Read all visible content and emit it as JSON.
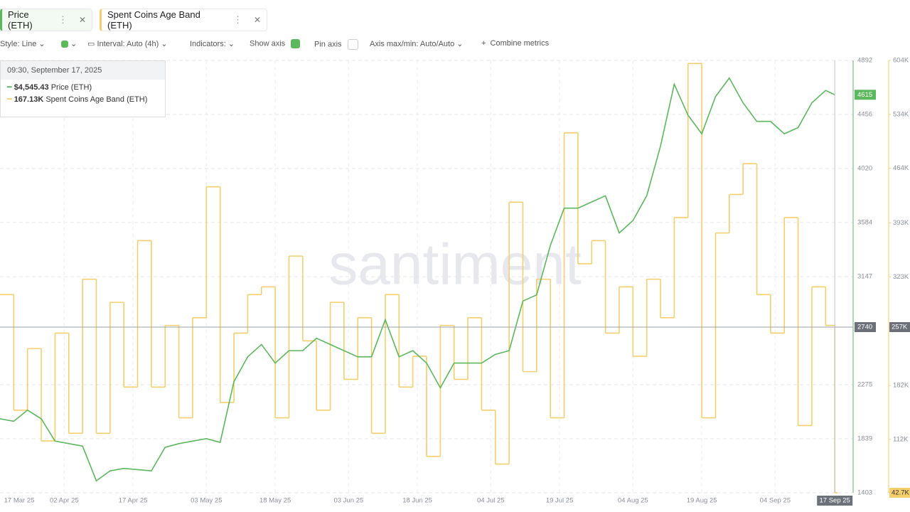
{
  "tabs": [
    "Price (ETH)",
    "Spent Coins Age Band (ETH)"
  ],
  "toolbar": {
    "style": "Style: Line",
    "interval": "Interval: Auto (4h)",
    "indicators": "Indicators:",
    "show_axis": "Show axis",
    "pin_axis": "Pin axis",
    "axis_minmax": "Axis max/min: Auto/Auto",
    "combine": "Combine metrics"
  },
  "tooltip": {
    "time": "09:30, September 17, 2025",
    "rows": [
      {
        "value": "$4,545.43",
        "name": "Price (ETH)"
      },
      {
        "value": "167.13K",
        "name": "Spent Coins Age Band (ETH)"
      }
    ]
  },
  "chart_data": {
    "type": "line",
    "watermark": "santiment",
    "x": [
      "2025-03-19",
      "2025-03-22",
      "2025-03-25",
      "2025-03-28",
      "2025-03-31",
      "2025-04-03",
      "2025-04-06",
      "2025-04-09",
      "2025-04-12",
      "2025-04-15",
      "2025-04-18",
      "2025-04-21",
      "2025-04-24",
      "2025-04-27",
      "2025-04-30",
      "2025-05-03",
      "2025-05-06",
      "2025-05-09",
      "2025-05-12",
      "2025-05-15",
      "2025-05-18",
      "2025-05-21",
      "2025-05-24",
      "2025-05-27",
      "2025-05-30",
      "2025-06-02",
      "2025-06-05",
      "2025-06-08",
      "2025-06-11",
      "2025-06-14",
      "2025-06-17",
      "2025-06-20",
      "2025-06-23",
      "2025-06-26",
      "2025-06-29",
      "2025-07-02",
      "2025-07-05",
      "2025-07-08",
      "2025-07-11",
      "2025-07-14",
      "2025-07-17",
      "2025-07-20",
      "2025-07-23",
      "2025-07-26",
      "2025-07-29",
      "2025-08-01",
      "2025-08-04",
      "2025-08-07",
      "2025-08-10",
      "2025-08-13",
      "2025-08-16",
      "2025-08-19",
      "2025-08-22",
      "2025-08-25",
      "2025-08-28",
      "2025-08-31",
      "2025-09-03",
      "2025-09-06",
      "2025-09-09",
      "2025-09-12",
      "2025-09-15",
      "2025-09-17"
    ],
    "xlim": [
      "2025-03-19",
      "2025-09-21"
    ],
    "xticks": [
      {
        "value": "2025-03-17",
        "label": "17 Mar 25"
      },
      {
        "value": "2025-04-02",
        "label": "02 Apr 25"
      },
      {
        "value": "2025-04-17",
        "label": "17 Apr 25"
      },
      {
        "value": "2025-05-03",
        "label": "03 May 25"
      },
      {
        "value": "2025-05-18",
        "label": "18 May 25"
      },
      {
        "value": "2025-06-03",
        "label": "03 Jun 25"
      },
      {
        "value": "2025-06-18",
        "label": "18 Jun 25"
      },
      {
        "value": "2025-07-04",
        "label": "04 Jul 25"
      },
      {
        "value": "2025-07-19",
        "label": "19 Jul 25"
      },
      {
        "value": "2025-08-04",
        "label": "04 Aug 25"
      },
      {
        "value": "2025-08-19",
        "label": "19 Aug 25"
      },
      {
        "value": "2025-09-04",
        "label": "04 Sep 25"
      }
    ],
    "ylim": [
      1403,
      4892
    ],
    "yticks": [
      1403,
      1839,
      2275,
      3147,
      3584,
      4020,
      4456,
      4892
    ],
    "y2lim": [
      42700,
      604000
    ],
    "y2ticks": [
      {
        "value": 42700,
        "label": "42.7K"
      },
      {
        "value": 112000,
        "label": "112K"
      },
      {
        "value": 182000,
        "label": "182K"
      },
      {
        "value": 323000,
        "label": "323K"
      },
      {
        "value": 393000,
        "label": "393K"
      },
      {
        "value": 464000,
        "label": "464K"
      },
      {
        "value": 534000,
        "label": "534K"
      },
      {
        "value": 604000,
        "label": "604K"
      }
    ],
    "grid": true,
    "crosshair": {
      "x": "2025-09-17",
      "x_label": "17 Sep 25",
      "y": 2740,
      "y2_label": "257K"
    },
    "series": [
      {
        "name": "Price (ETH)",
        "color": "#5cb85c",
        "values": [
          2000,
          1980,
          2070,
          2000,
          1820,
          1800,
          1780,
          1500,
          1580,
          1600,
          1590,
          1580,
          1770,
          1800,
          1820,
          1840,
          1810,
          2300,
          2500,
          2600,
          2450,
          2550,
          2550,
          2650,
          2600,
          2550,
          2500,
          2500,
          2800,
          2500,
          2550,
          2450,
          2250,
          2450,
          2450,
          2450,
          2520,
          2550,
          2950,
          3000,
          3400,
          3700,
          3700,
          3750,
          3800,
          3500,
          3600,
          3800,
          4200,
          4700,
          4450,
          4300,
          4600,
          4750,
          4550,
          4400,
          4400,
          4300,
          4350,
          4550,
          4650,
          4615
        ]
      },
      {
        "name": "Spent Coins Age Band (ETH)",
        "color": "#f5cf6b",
        "axis": "y2",
        "last_value_label": "42.7K",
        "values": [
          300000,
          150000,
          230000,
          110000,
          250000,
          120000,
          320000,
          120000,
          290000,
          180000,
          370000,
          180000,
          260000,
          140000,
          270000,
          440000,
          160000,
          250000,
          300000,
          310000,
          140000,
          350000,
          240000,
          150000,
          290000,
          190000,
          270000,
          120000,
          300000,
          180000,
          220000,
          90000,
          260000,
          190000,
          270000,
          150000,
          80000,
          420000,
          200000,
          320000,
          140000,
          510000,
          340000,
          370000,
          250000,
          310000,
          220000,
          320000,
          270000,
          400000,
          600000,
          140000,
          380000,
          430000,
          470000,
          300000,
          250000,
          400000,
          130000,
          310000,
          260000,
          42700
        ]
      }
    ]
  }
}
